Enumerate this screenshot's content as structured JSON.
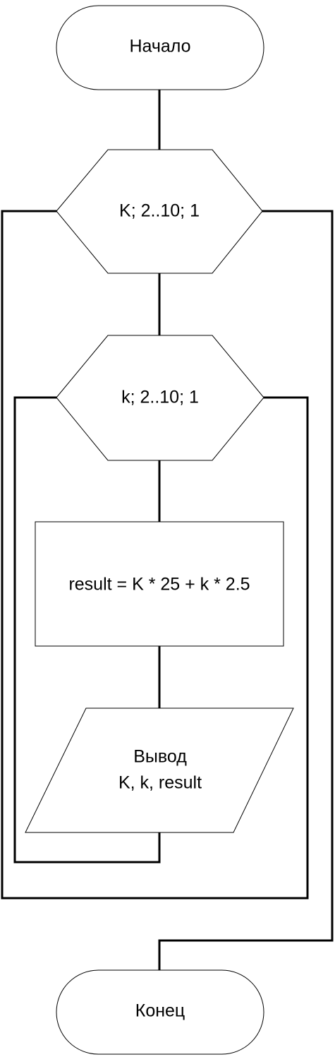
{
  "diagram": {
    "start": "Начало",
    "outer_loop": "K; 2..10; 1",
    "inner_loop": "k; 2..10; 1",
    "process": "result = K * 25 + k * 2.5",
    "output_line1": "Вывод",
    "output_line2": "K, k, result",
    "end": "Конец"
  }
}
